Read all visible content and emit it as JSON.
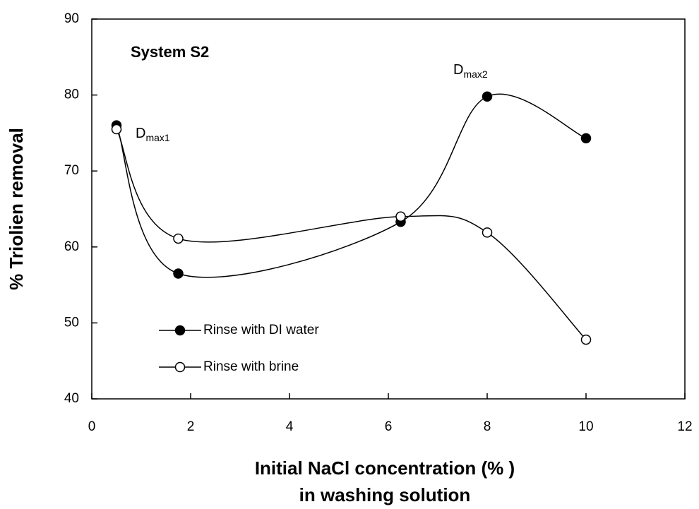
{
  "chart_data": {
    "type": "line",
    "annotations": [
      {
        "text": "System S2"
      },
      {
        "base": "D",
        "sub": "max1"
      },
      {
        "base": "D",
        "sub": "max2"
      }
    ],
    "xlabel": [
      "Initial NaCl concentration  (% )",
      "in washing solution"
    ],
    "ylabel": "% Triolien removal",
    "x": [
      0.5,
      1.75,
      6.25,
      8,
      10
    ],
    "series": [
      {
        "name": "Rinse with DI water",
        "color": "#000000",
        "marker": "filled",
        "values": [
          76,
          56.5,
          63.3,
          79.8,
          74.3
        ]
      },
      {
        "name": "Rinse with brine",
        "color": "#000000",
        "marker": "open",
        "values": [
          75.5,
          61.1,
          64,
          61.9,
          47.8
        ]
      }
    ],
    "xlim": [
      0,
      12
    ],
    "xticks": [
      0,
      2,
      4,
      6,
      8,
      10,
      12
    ],
    "ylim": [
      40,
      90
    ],
    "yticks": [
      40,
      50,
      60,
      70,
      80,
      90
    ],
    "grid": false,
    "legend": "lower left"
  }
}
